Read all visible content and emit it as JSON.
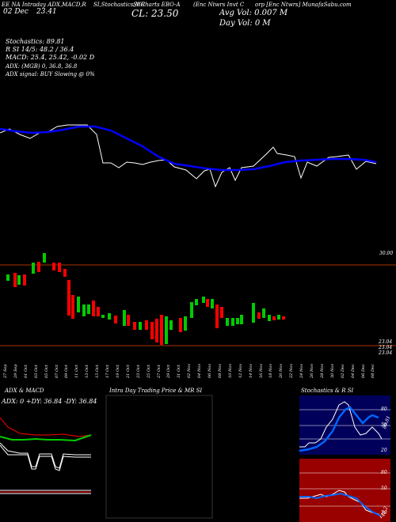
{
  "header": {
    "line1": "EE NA Intraday ADX,MACD,R",
    "line1b": "SI,Stochastics,MR",
    "line1c": "SI Charts EBO-A",
    "line1d": "(Enc Ntwrs Invt C",
    "line1e": "orp [Enc Ntwrs] MunafaSabu.com",
    "date_label": "02 Dec",
    "price_label": "23.41",
    "close_label": "CL: 23.50",
    "avg_vol": "Avg Vol: 0.007 M",
    "day_vol": "Day Vol: 0   M"
  },
  "indicators": {
    "stoch": "Stochastics: 89.81",
    "rsi": "R        SI 14/5: 48.2  / 36.4",
    "macd": "MACD: 25.4, 25.42, -0.02  D",
    "adx": "ADX:                              (MGB) 0, 36.8, 36.8",
    "adx_signal": "ADX   signal:                                   BUY Slowing @ 0%"
  },
  "price_axis": {
    "top": "30.00",
    "bottom1": "23.04",
    "bottom2": "23.04",
    "bottom3": "23.04"
  },
  "dates": [
    "27 Sep",
    "29 Sep",
    "01 Oct",
    "03 Oct",
    "05 Oct",
    "07 Oct",
    "09 Oct",
    "11 Oct",
    "13 Oct",
    "15 Oct",
    "17 Oct",
    "19 Oct",
    "21 Oct",
    "23 Oct",
    "25 Oct",
    "27 Oct",
    "29 Oct",
    "31 Oct",
    "02 Nov",
    "04 Nov",
    "06 Nov",
    "08 Nov",
    "10 Nov",
    "12 Nov",
    "14 Nov",
    "16 Nov",
    "18 Nov",
    "20 Nov",
    "22 Nov",
    "24 Nov",
    "26 Nov",
    "28 Nov",
    "30 Nov",
    "02 Dec",
    "04 Dec",
    "06 Dec",
    "08 Dec"
  ],
  "panels": {
    "adx_title": "ADX  & MACD",
    "adx_values": "ADX: 0  +DY: 36.84  -DY: 36.84",
    "intra_title": "Intra  Day  Trading Price  & MR                SI",
    "stoch_title": "Stochastics & R             SI",
    "stoch_ticks": [
      "80",
      "50",
      "20"
    ],
    "rsi_ticks": [
      "80",
      "50",
      "20"
    ],
    "stoch_label": "89.81",
    "rsi_label": "48.2"
  },
  "colors": {
    "up": "#00cc00",
    "down": "#ff0000",
    "ma": "#0000ff",
    "navy": "#00005a",
    "maroon": "#990000",
    "axis_line": "#aa3300"
  }
}
